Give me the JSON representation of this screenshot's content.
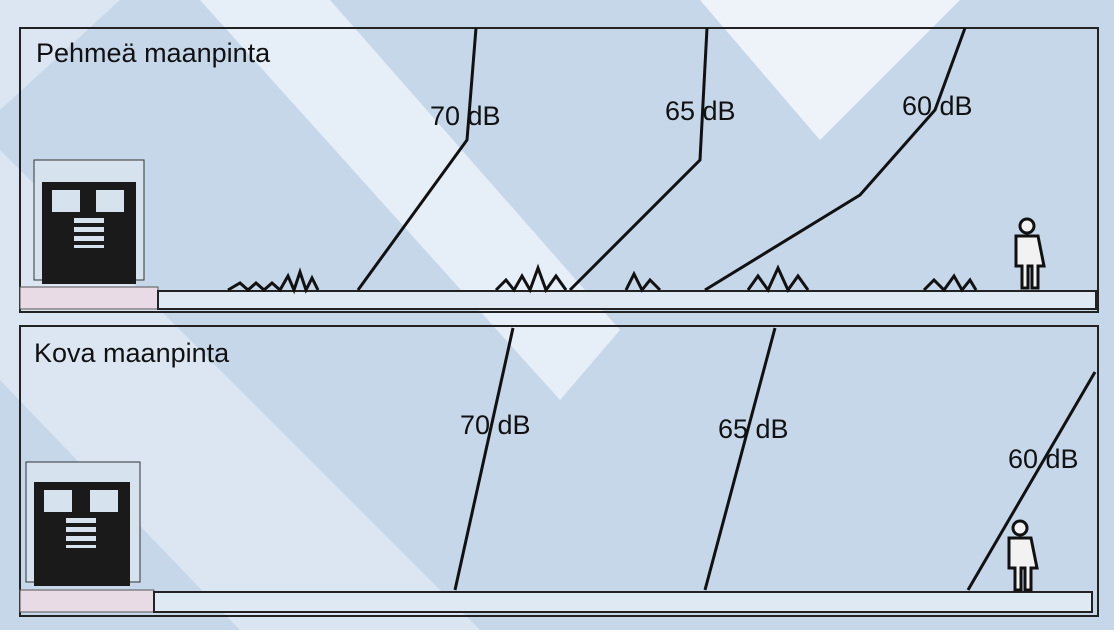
{
  "panels": [
    {
      "title": "Pehmeä maanpinta",
      "contours": [
        {
          "label": "70 dB"
        },
        {
          "label": "65 dB"
        },
        {
          "label": "60 dB"
        }
      ]
    },
    {
      "title": "Kova maanpinta",
      "contours": [
        {
          "label": "70 dB"
        },
        {
          "label": "65 dB"
        },
        {
          "label": "60 dB"
        }
      ]
    }
  ]
}
